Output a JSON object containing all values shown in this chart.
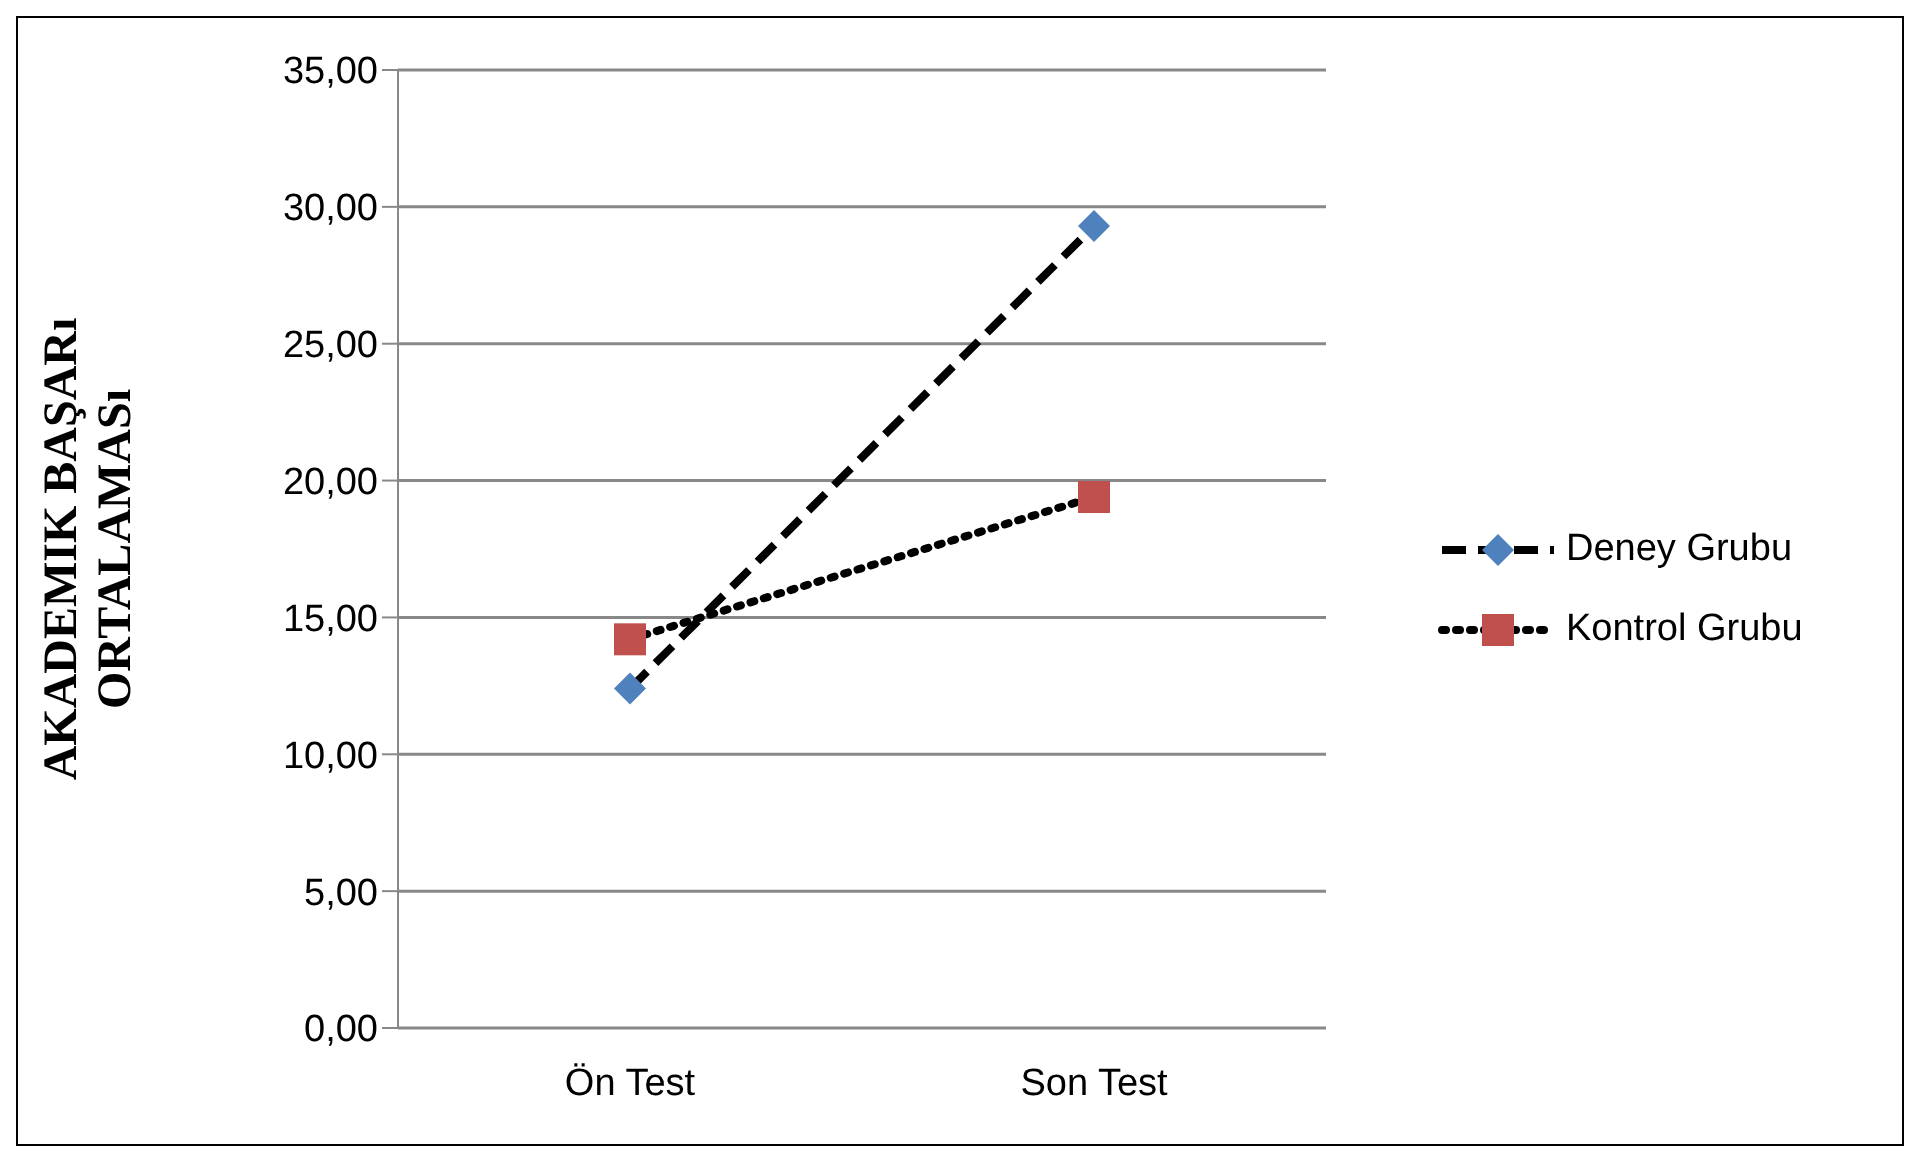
{
  "chart_data": {
    "type": "line",
    "ylabel": "AKADEMIK BAŞARı ORTALAMASı",
    "categories": [
      "Ön Test",
      "Son Test"
    ],
    "series": [
      {
        "name": "Deney Grubu",
        "color": "#4f81bd",
        "values": [
          12.4,
          29.3
        ],
        "marker": "diamond",
        "line_style": "dashed"
      },
      {
        "name": "Kontrol Grubu",
        "color": "#c0504d",
        "values": [
          14.2,
          19.4
        ],
        "marker": "square",
        "line_style": "dotted"
      }
    ],
    "ylim": [
      0,
      35
    ],
    "yticks": [
      {
        "value": 0,
        "label": "0,00"
      },
      {
        "value": 5,
        "label": "5,00"
      },
      {
        "value": 10,
        "label": "10,00"
      },
      {
        "value": 15,
        "label": "15,00"
      },
      {
        "value": 20,
        "label": "20,00"
      },
      {
        "value": 25,
        "label": "25,00"
      },
      {
        "value": 30,
        "label": "30,00"
      },
      {
        "value": 35,
        "label": "35,00"
      }
    ],
    "grid": "y",
    "legend": "right"
  }
}
